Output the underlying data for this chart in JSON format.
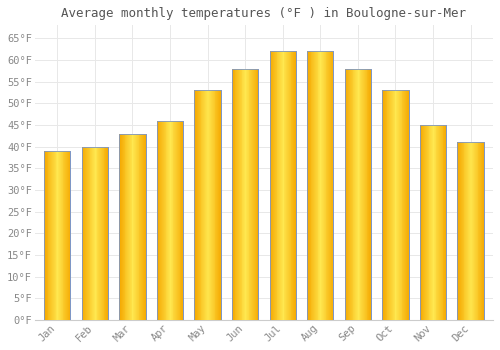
{
  "title": "Average monthly temperatures (°F ) in Boulogne-sur-Mer",
  "months": [
    "Jan",
    "Feb",
    "Mar",
    "Apr",
    "May",
    "Jun",
    "Jul",
    "Aug",
    "Sep",
    "Oct",
    "Nov",
    "Dec"
  ],
  "values": [
    39,
    40,
    43,
    46,
    53,
    58,
    62,
    62,
    58,
    53,
    45,
    41
  ],
  "bar_color_light": "#FFD966",
  "bar_color_dark": "#F5A800",
  "bar_edge_color": "#7B96C8",
  "background_color": "#FFFFFF",
  "grid_color": "#E8E8E8",
  "ylim": [
    0,
    68
  ],
  "yticks": [
    0,
    5,
    10,
    15,
    20,
    25,
    30,
    35,
    40,
    45,
    50,
    55,
    60,
    65
  ],
  "ytick_labels": [
    "0°F",
    "5°F",
    "10°F",
    "15°F",
    "20°F",
    "25°F",
    "30°F",
    "35°F",
    "40°F",
    "45°F",
    "50°F",
    "55°F",
    "60°F",
    "65°F"
  ],
  "title_fontsize": 9,
  "tick_fontsize": 7.5,
  "title_color": "#555555",
  "tick_color": "#888888",
  "font_family": "monospace",
  "bar_width": 0.7
}
